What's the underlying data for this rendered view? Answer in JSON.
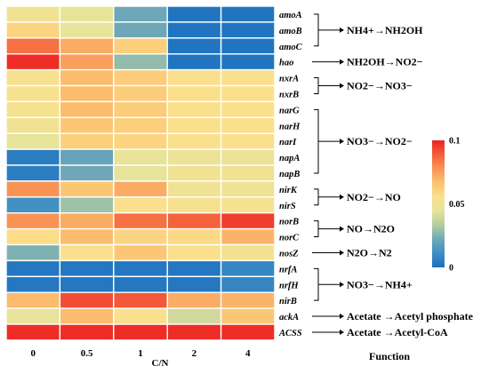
{
  "chart_data": {
    "type": "heatmap",
    "xlabel": "C/N",
    "function_label": "Function",
    "x_categories": [
      "0",
      "0.5",
      "1",
      "2",
      "4"
    ],
    "genes": [
      "amoA",
      "amoB",
      "amoC",
      "hao",
      "nxrA",
      "nxrB",
      "narG",
      "narH",
      "narI",
      "napA",
      "napB",
      "nirK",
      "nirS",
      "norB",
      "norC",
      "nosZ",
      "nrfA",
      "nrfH",
      "nirB",
      "ackA",
      "ACSS"
    ],
    "values": [
      [
        0.05,
        0.045,
        0.022,
        0.002,
        0.002
      ],
      [
        0.06,
        0.045,
        0.022,
        0.002,
        0.002
      ],
      [
        0.085,
        0.072,
        0.062,
        0.002,
        0.002
      ],
      [
        0.098,
        0.075,
        0.028,
        0.002,
        0.002
      ],
      [
        0.053,
        0.068,
        0.063,
        0.055,
        0.055
      ],
      [
        0.053,
        0.068,
        0.063,
        0.055,
        0.055
      ],
      [
        0.053,
        0.068,
        0.063,
        0.055,
        0.055
      ],
      [
        0.05,
        0.065,
        0.062,
        0.055,
        0.055
      ],
      [
        0.045,
        0.062,
        0.06,
        0.055,
        0.055
      ],
      [
        0.005,
        0.02,
        0.045,
        0.047,
        0.047
      ],
      [
        0.005,
        0.022,
        0.045,
        0.05,
        0.05
      ],
      [
        0.078,
        0.065,
        0.072,
        0.05,
        0.05
      ],
      [
        0.012,
        0.03,
        0.055,
        0.053,
        0.053
      ],
      [
        0.078,
        0.072,
        0.085,
        0.088,
        0.095
      ],
      [
        0.057,
        0.068,
        0.06,
        0.058,
        0.07
      ],
      [
        0.025,
        0.055,
        0.065,
        0.055,
        0.052
      ],
      [
        0.003,
        0.003,
        0.003,
        0.003,
        0.008
      ],
      [
        0.003,
        0.003,
        0.003,
        0.003,
        0.008
      ],
      [
        0.068,
        0.092,
        0.09,
        0.072,
        0.07
      ],
      [
        0.045,
        0.068,
        0.055,
        0.04,
        0.065
      ],
      [
        0.098,
        0.098,
        0.098,
        0.098,
        0.098
      ]
    ],
    "functions": [
      {
        "rows": [
          0,
          2
        ],
        "label": "NH4+→NH2OH",
        "bracket": true
      },
      {
        "rows": [
          3,
          3
        ],
        "label": "NH2OH→NO2−",
        "bracket": false
      },
      {
        "rows": [
          4,
          5
        ],
        "label": "NO2−→NO3−",
        "bracket": true
      },
      {
        "rows": [
          6,
          10
        ],
        "label": "NO3−→NO2−",
        "bracket": true
      },
      {
        "rows": [
          11,
          12
        ],
        "label": "NO2−→NO",
        "bracket": true
      },
      {
        "rows": [
          13,
          14
        ],
        "label": "NO→N2O",
        "bracket": true
      },
      {
        "rows": [
          15,
          15
        ],
        "label": "N2O→N2",
        "bracket": false
      },
      {
        "rows": [
          16,
          18
        ],
        "label": "NO3−→NH4+",
        "bracket": true
      },
      {
        "rows": [
          19,
          19
        ],
        "label": "Acetate →Acetyl phosphate",
        "bracket": false
      },
      {
        "rows": [
          20,
          20
        ],
        "label": "Acetate →Acetyl-CoA",
        "bracket": false
      }
    ],
    "colorbar": {
      "min": 0,
      "max": 0.1,
      "ticks": [
        "0",
        "0.05",
        "0.1"
      ],
      "colors": [
        "#1a6fbf",
        "#3f8ec4",
        "#6fa8b8",
        "#b2cd9f",
        "#e6e39a",
        "#fbe08c",
        "#fbc271",
        "#f99455",
        "#f45e3a",
        "#ec2222"
      ]
    }
  }
}
